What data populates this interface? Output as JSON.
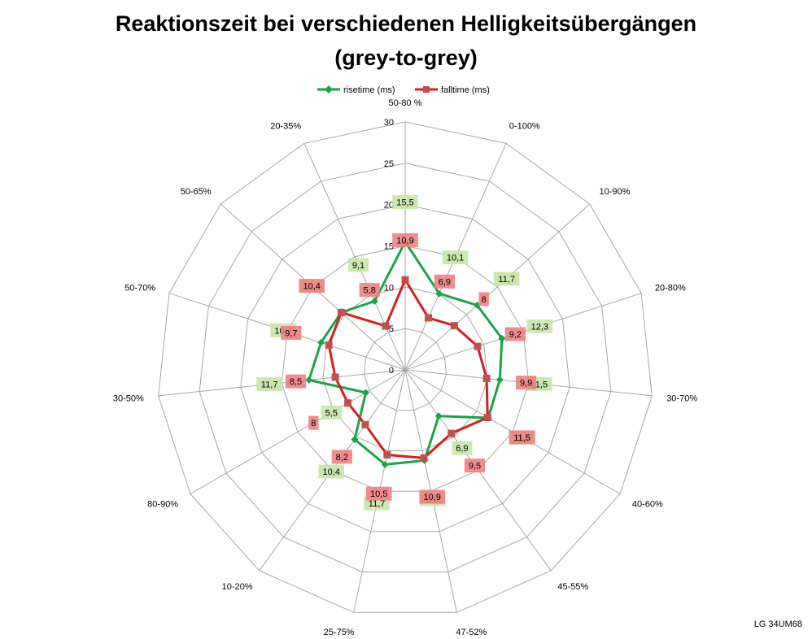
{
  "page": {
    "title_line1": "Reaktionszeit bei verschiedenen Helligkeitsübergängen",
    "title_line2": "(grey-to-grey)",
    "footer": "LG 34UM68"
  },
  "colors": {
    "rise": "#1aa34a",
    "fall": "#d42020",
    "rise_label_bg": "#c6e5a8",
    "fall_label_bg": "#f08080",
    "grid": "#a6a6a6"
  },
  "chart_data": {
    "type": "radar",
    "title": "Reaktionszeit bei verschiedenen Helligkeitsübergängen (grey-to-grey)",
    "categories": [
      "50-80 %",
      "0-100%",
      "10-90%",
      "20-80%",
      "30-70%",
      "40-60%",
      "45-55%",
      "47-52%",
      "25-75%",
      "10-20%",
      "80-90%",
      "30-50%",
      "50-70%",
      "50-65%",
      "20-35%"
    ],
    "rlim": [
      0,
      30
    ],
    "ticks": [
      0,
      5,
      10,
      15,
      20,
      25,
      30
    ],
    "tick_labels": [
      "0",
      "5",
      "10",
      "15",
      "20",
      "25",
      "30"
    ],
    "grid": true,
    "legend_position": "top",
    "series": [
      {
        "name": "risetime (ms)",
        "values": [
          15.5,
          10.1,
          11.7,
          12.3,
          11.5,
          11.6,
          6.9,
          11.2,
          11.7,
          10.4,
          5.5,
          11.7,
          10.7,
          10.4,
          9.1
        ],
        "labels": [
          "15,5",
          "10,1",
          "11,7",
          "12,3",
          "11,5",
          "11,6",
          "6,9",
          "11,2",
          "11,7",
          "10,4",
          "5,5",
          "11,7",
          "10,7",
          "10,4",
          "9,1"
        ]
      },
      {
        "name": "falltime (ms)",
        "values": [
          10.9,
          6.9,
          8,
          9.2,
          9.9,
          11.5,
          9.5,
          10.9,
          10.5,
          8.2,
          8,
          8.5,
          9.7,
          10.4,
          5.8
        ],
        "labels": [
          "10,9",
          "6,9",
          "8",
          "9,2",
          "9,9",
          "11,5",
          "9,5",
          "10,9",
          "10,5",
          "8,2",
          "8",
          "8,5",
          "9,7",
          "10,4",
          "5,8"
        ]
      }
    ]
  }
}
